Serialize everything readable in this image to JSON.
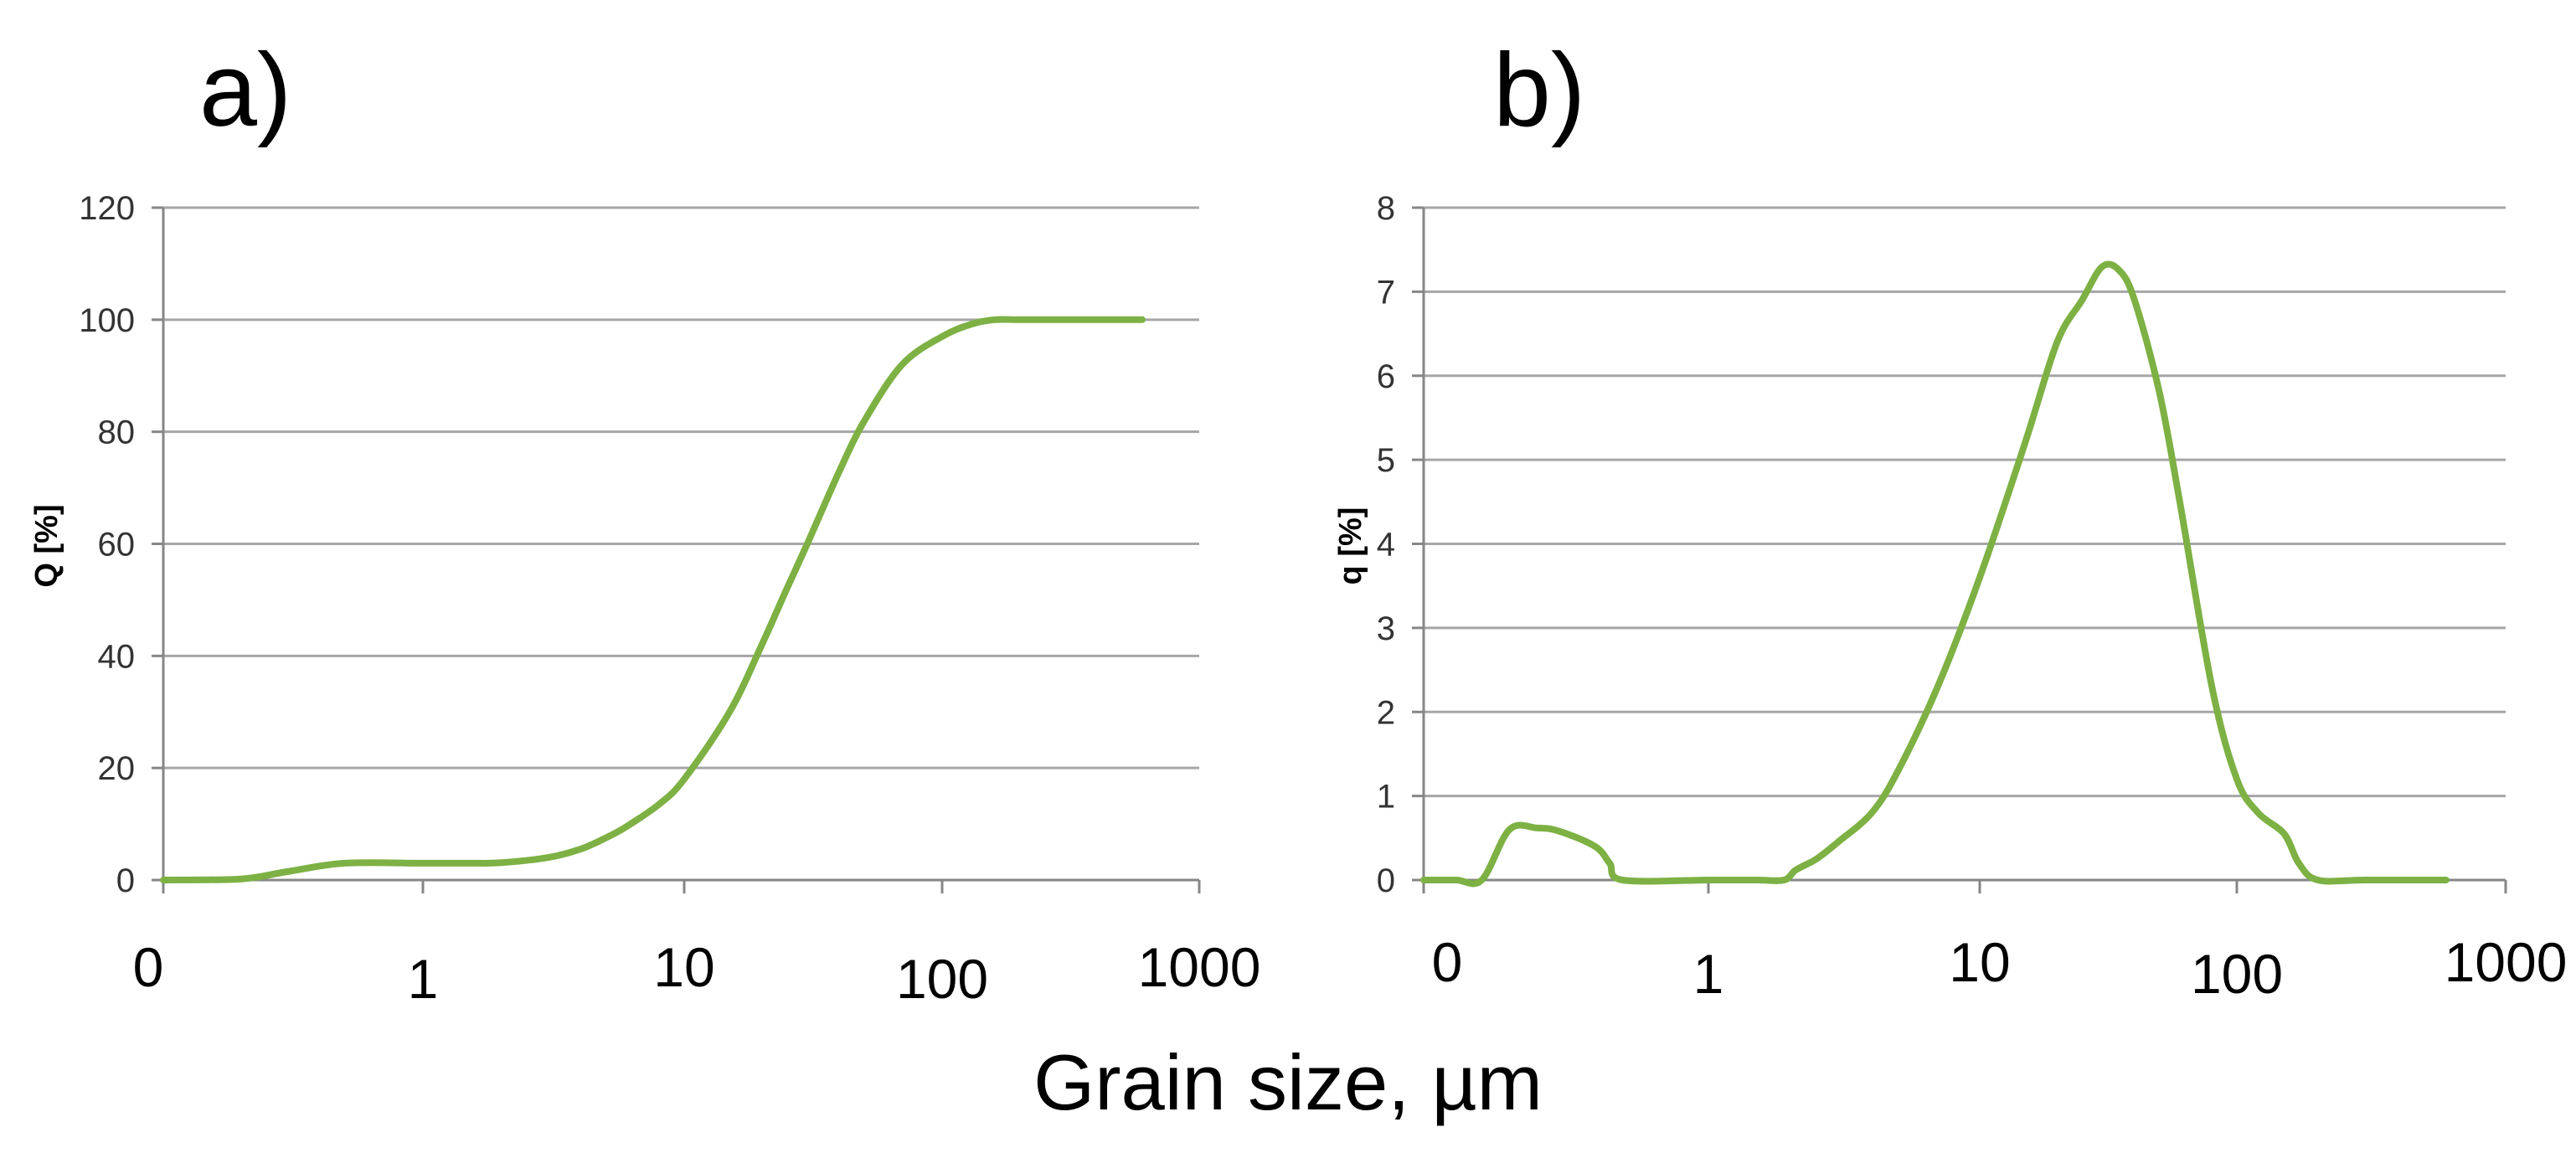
{
  "figure": {
    "shared_xlabel": "Grain size, µm"
  },
  "chart_data": [
    {
      "type": "line",
      "panel_label": "a)",
      "ylabel": "Q [%]",
      "xlabel": "Grain size, µm",
      "xscale": "log",
      "ylim": [
        0,
        120
      ],
      "yticks": [
        "0",
        "20",
        "40",
        "60",
        "80",
        "100",
        "120"
      ],
      "xtick_labels": [
        "0",
        "1",
        "10",
        "100",
        "1000"
      ],
      "grid": true,
      "legend": "none",
      "series": [
        {
          "name": "Q",
          "color": "#7db144",
          "x": [
            0.1,
            0.2,
            0.3,
            0.5,
            1,
            1.5,
            2,
            3,
            4,
            5,
            6,
            8,
            10,
            15,
            20,
            25,
            30,
            40,
            50,
            70,
            100,
            130,
            160,
            200,
            300,
            600
          ],
          "y": [
            0,
            0.2,
            1.5,
            3,
            3,
            3,
            3.1,
            4,
            5.5,
            7.5,
            9.5,
            13.5,
            18,
            30,
            42,
            52,
            60,
            73,
            82,
            92,
            97,
            99.2,
            100,
            100,
            100,
            100
          ]
        }
      ]
    },
    {
      "type": "line",
      "panel_label": "b)",
      "ylabel": "q [%]",
      "xlabel": "Grain size, µm",
      "xscale": "log",
      "ylim": [
        0,
        8
      ],
      "yticks": [
        "0",
        "1",
        "2",
        "3",
        "4",
        "5",
        "6",
        "7",
        "8"
      ],
      "xtick_labels": [
        "0",
        "1",
        "10",
        "100",
        "1000"
      ],
      "grid": true,
      "legend": "none",
      "series": [
        {
          "name": "q",
          "color": "#7db144",
          "x": [
            0.1,
            0.13,
            0.16,
            0.2,
            0.25,
            0.3,
            0.4,
            0.45,
            0.5,
            1,
            1.5,
            1.9,
            2.1,
            2.5,
            3,
            4,
            5,
            7,
            10,
            15,
            20,
            25,
            30,
            35,
            40,
            50,
            60,
            80,
            100,
            120,
            150,
            170,
            200,
            300,
            600
          ],
          "y": [
            0,
            0,
            0,
            0.6,
            0.62,
            0.58,
            0.4,
            0.2,
            0,
            0,
            0,
            0,
            0.12,
            0.25,
            0.45,
            0.8,
            1.3,
            2.3,
            3.6,
            5.2,
            6.4,
            6.9,
            7.3,
            7.25,
            6.9,
            5.8,
            4.5,
            2.3,
            1.2,
            0.8,
            0.55,
            0.2,
            0,
            0,
            0
          ]
        }
      ]
    }
  ]
}
